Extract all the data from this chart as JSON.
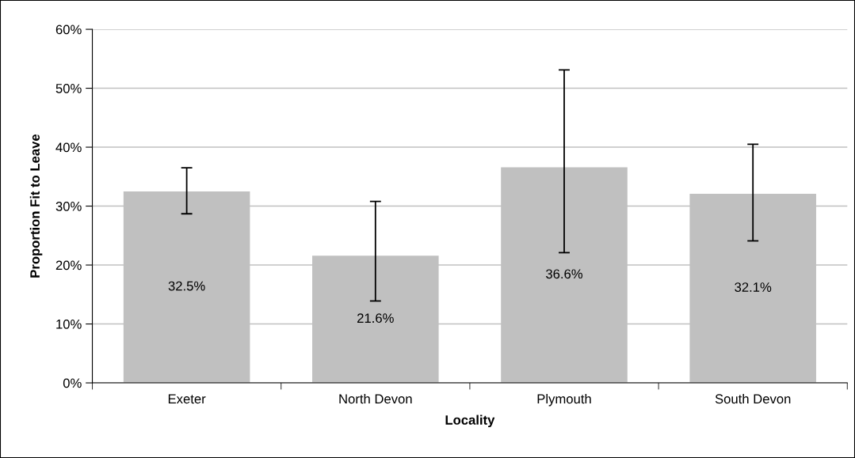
{
  "chart_data": {
    "type": "bar",
    "xlabel": "Locality",
    "ylabel": "Proportion Fit to Leave",
    "categories": [
      "Exeter",
      "North Devon",
      "Plymouth",
      "South Devon"
    ],
    "series": [
      {
        "color": "#c0c0c0",
        "values": [
          32.5,
          21.6,
          36.6,
          32.1
        ],
        "errors": [
          [
            28.7,
            36.5
          ],
          [
            13.9,
            30.8
          ],
          [
            22.1,
            53.1
          ],
          [
            24.1,
            40.5
          ]
        ],
        "value_labels": [
          "32.5%",
          "21.6%",
          "36.6%",
          "32.1%"
        ]
      }
    ],
    "ylim": [
      0,
      60
    ],
    "yticks": [
      {
        "value": 0,
        "label": "0%"
      },
      {
        "value": 10,
        "label": "10%"
      },
      {
        "value": 20,
        "label": "20%"
      },
      {
        "value": 30,
        "label": "30%"
      },
      {
        "value": 40,
        "label": "40%"
      },
      {
        "value": 50,
        "label": "50%"
      },
      {
        "value": 60,
        "label": "60%"
      }
    ],
    "grid": "y"
  }
}
